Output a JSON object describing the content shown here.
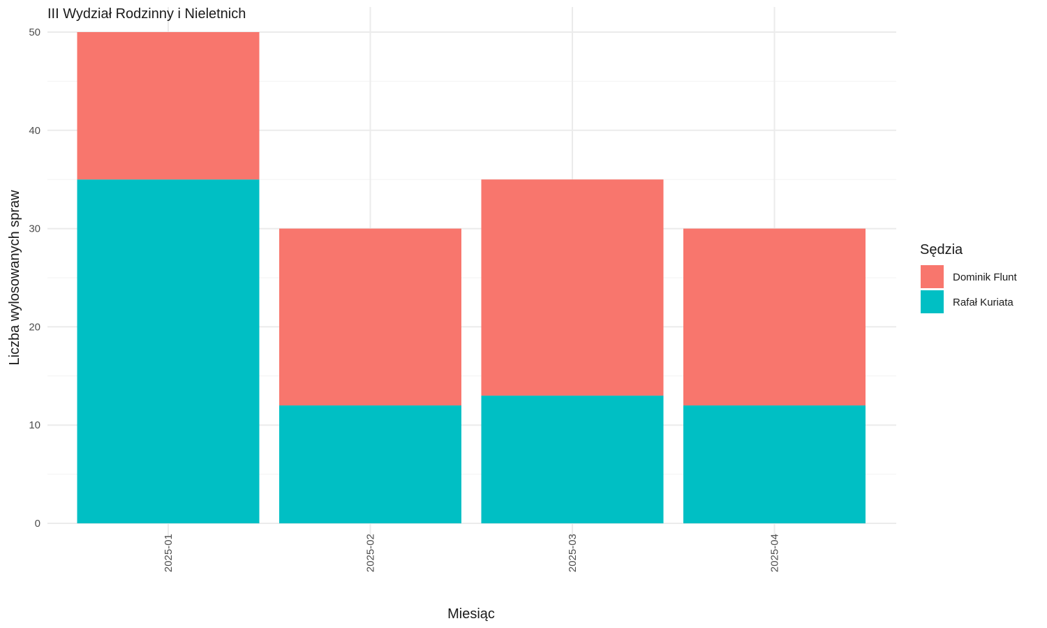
{
  "chart_data": {
    "type": "bar",
    "stacked": true,
    "title": "III Wydział Rodzinny i Nieletnich",
    "xlabel": "Miesiąc",
    "ylabel": "Liczba wylosowanych spraw",
    "categories": [
      "2025-01",
      "2025-02",
      "2025-03",
      "2025-04"
    ],
    "ylim": [
      0,
      50
    ],
    "yticks": [
      0,
      10,
      20,
      30,
      40,
      50
    ],
    "grid": true,
    "legend": {
      "title": "Sędzia",
      "position": "right"
    },
    "series": [
      {
        "name": "Rafał Kuriata",
        "values": [
          35,
          12,
          13,
          12
        ],
        "color": "#00BFC4"
      },
      {
        "name": "Dominik Flunt",
        "values": [
          15,
          18,
          22,
          18
        ],
        "color": "#F8766D"
      }
    ],
    "legend_order": [
      "Dominik Flunt",
      "Rafał Kuriata"
    ]
  }
}
